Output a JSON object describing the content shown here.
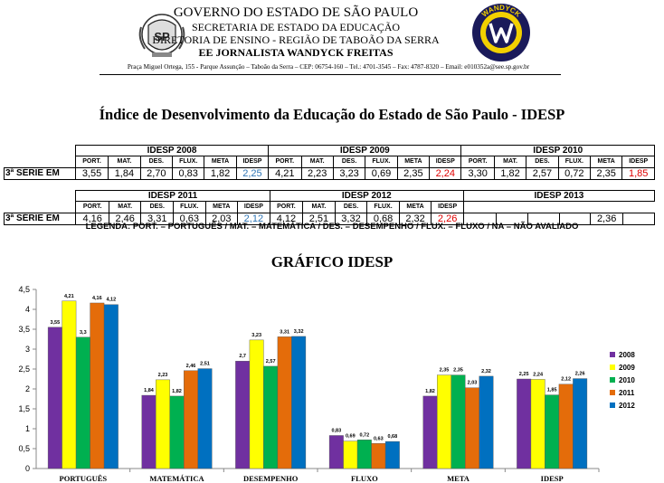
{
  "header": {
    "line1": "GOVERNO DO ESTADO DE SÃO PAULO",
    "line2": "SECRETARIA DE ESTADO DA EDUCAÇÃO",
    "line3": "DIRETORIA DE ENSINO - REGIÃO DE TABOÃO DA SERRA",
    "line4": "EE JORNALISTA WANDYCK FREITAS",
    "address": "Praça Miguel Ortega, 155 - Parque Assunção – Taboão da Serra – CEP: 06754-160 – Tel.: 4701-3545 – Fax: 4787-8320 – Email: e010352a@see.sp.gov.br",
    "left_logo_text": "SP",
    "right_logo_text": "WANDYCK"
  },
  "title": "Índice de Desenvolvimento da Educação do Estado de São Paulo - IDESP",
  "columns": [
    "PORT.",
    "MAT.",
    "DES.",
    "FLUX.",
    "META",
    "IDESP"
  ],
  "row_label": "3ª SÉRIE EM",
  "row1": {
    "y2008": {
      "label": "IDESP 2008",
      "values": [
        "3,55",
        "1,84",
        "2,70",
        "0,83",
        "1,82",
        "2,25"
      ]
    },
    "y2009": {
      "label": "IDESP 2009",
      "values": [
        "4,21",
        "2,23",
        "3,23",
        "0,69",
        "2,35",
        "2,24"
      ]
    },
    "y2010": {
      "label": "IDESP 2010",
      "values": [
        "3,30",
        "1,82",
        "2,57",
        "0,72",
        "2,35",
        "1,85"
      ]
    }
  },
  "row2": {
    "y2011": {
      "label": "IDESP 2011",
      "values": [
        "4,16",
        "2,46",
        "3,31",
        "0,63",
        "2,03",
        "2,12"
      ]
    },
    "y2012": {
      "label": "IDESP 2012",
      "values": [
        "4,12",
        "2,51",
        "3,32",
        "0,68",
        "2,32",
        "2,26"
      ]
    },
    "y2013": {
      "label": "IDESP 2013",
      "values": [
        "",
        "",
        "",
        "",
        "2,36",
        ""
      ]
    }
  },
  "legend_text": "LEGENDA: PORT. = PORTUGUÊS / MAT. = MATEMÁTICA / DES. = DESEMPENHO / FLUX. = FLUXO / NA = NÃO AVALIADO",
  "colors": {
    "idesp_2008": "#2e75b6",
    "idesp_2009": "#e00000",
    "idesp_2010": "#e00000",
    "idesp_2011": "#2e75b6",
    "idesp_2012": "#e00000"
  },
  "chart_title": "GRÁFICO IDESP",
  "chart_data": {
    "type": "bar",
    "categories": [
      "PORTUGUÊS",
      "MATEMÁTICA",
      "DESEMPENHO",
      "FLUXO",
      "META",
      "IDESP"
    ],
    "series": [
      {
        "name": "2008",
        "color": "#7030a0",
        "values": [
          3.55,
          1.84,
          2.7,
          0.83,
          1.82,
          2.25
        ]
      },
      {
        "name": "2009",
        "color": "#ffff00",
        "values": [
          4.21,
          2.23,
          3.23,
          0.69,
          2.35,
          2.24
        ]
      },
      {
        "name": "2010",
        "color": "#00b050",
        "values": [
          3.3,
          1.82,
          2.57,
          0.72,
          2.35,
          1.85
        ]
      },
      {
        "name": "2011",
        "color": "#e46c0a",
        "values": [
          4.16,
          2.46,
          3.31,
          0.63,
          2.03,
          2.12
        ]
      },
      {
        "name": "2012",
        "color": "#0070c0",
        "values": [
          4.12,
          2.51,
          3.32,
          0.68,
          2.32,
          2.26
        ]
      }
    ],
    "data_labels": [
      [
        "3,55",
        "1,84",
        "2,7",
        "0,83",
        "1,82",
        "2,25"
      ],
      [
        "4,21",
        "2,23",
        "3,23",
        "0,69",
        "2,35",
        "2,24"
      ],
      [
        "3,3",
        "1,82",
        "2,57",
        "0,72",
        "2,35",
        "1,85"
      ],
      [
        "4,16",
        "2,46",
        "3,31",
        "0,63",
        "2,03",
        "2,12"
      ],
      [
        "4,12",
        "2,51",
        "3,32",
        "0,68",
        "2,32",
        "2,26"
      ]
    ],
    "yticks": [
      "0",
      "0,5",
      "1",
      "1,5",
      "2",
      "2,5",
      "3",
      "3,5",
      "4",
      "4,5"
    ],
    "ylim": [
      0,
      4.5
    ],
    "legend_position": "right"
  }
}
